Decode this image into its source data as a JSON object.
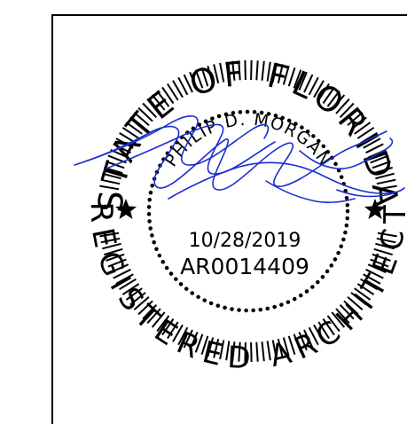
{
  "seal": {
    "top_text": "STATE OF FLORIDA",
    "bottom_text": "REGISTERED ARCHITECT",
    "name": "PHILIP D. MORGAN",
    "date": "10/28/2019",
    "license": "AR0014409",
    "ink_color": "#000000",
    "signature_color": "#1a2fd0"
  }
}
